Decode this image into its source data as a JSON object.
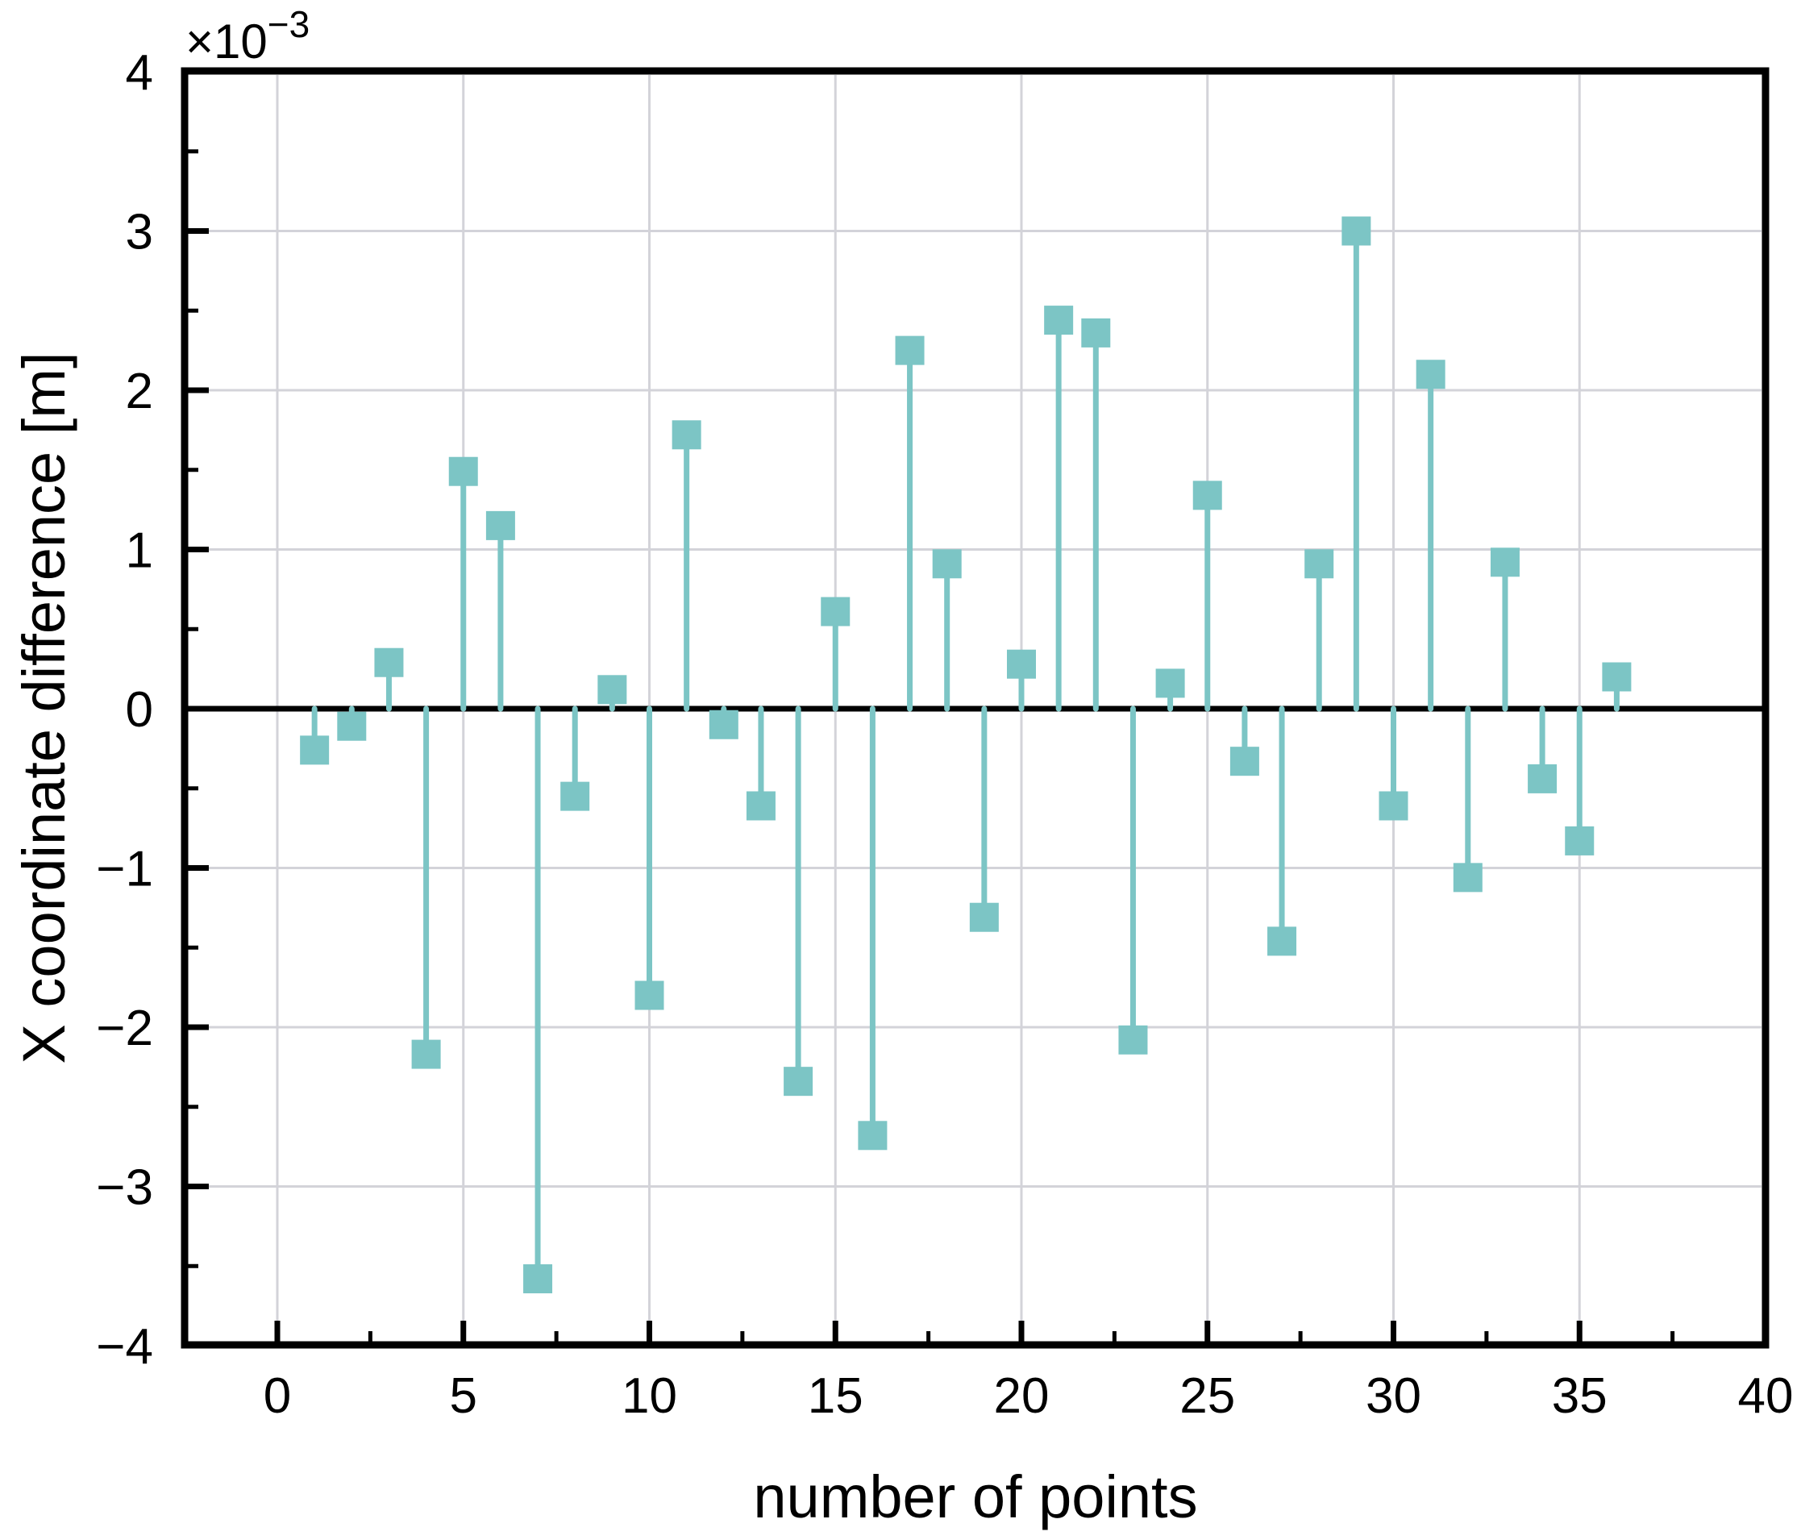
{
  "chart_data": {
    "type": "stem",
    "title": "",
    "xlabel": "number of points",
    "ylabel": "X coordinate difference [m]",
    "y_offset_label": {
      "base": "×10",
      "exponent": "−3"
    },
    "x": [
      1,
      2,
      3,
      4,
      5,
      6,
      7,
      8,
      9,
      10,
      11,
      12,
      13,
      14,
      15,
      16,
      17,
      18,
      19,
      20,
      21,
      22,
      23,
      24,
      25,
      26,
      27,
      28,
      29,
      30,
      31,
      32,
      33,
      34,
      35,
      36
    ],
    "values_x1e3": [
      -0.26,
      -0.11,
      0.29,
      -2.17,
      1.49,
      1.15,
      -3.58,
      -0.55,
      0.12,
      -1.8,
      1.72,
      -0.1,
      -0.61,
      -2.34,
      0.61,
      -2.68,
      2.25,
      0.91,
      -1.31,
      0.28,
      2.44,
      2.36,
      -2.08,
      0.16,
      1.34,
      -0.33,
      -1.46,
      0.91,
      3.0,
      -0.61,
      2.1,
      -1.06,
      0.92,
      -0.44,
      -0.83,
      0.2
    ],
    "unit_multiplier": 0.001,
    "xlim": [
      -2.5,
      40
    ],
    "ylim_x1e3": [
      -4,
      4
    ],
    "xticks": [
      0,
      5,
      10,
      15,
      20,
      25,
      30,
      35,
      40
    ],
    "x_minor_ticks": [
      2.5,
      7.5,
      12.5,
      17.5,
      22.5,
      27.5,
      32.5,
      37.5
    ],
    "yticks_x1e3": [
      4,
      3,
      2,
      1,
      0,
      -1,
      -2,
      -3,
      -4
    ],
    "y_minor_ticks_x1e3": [
      3.5,
      2.5,
      1.5,
      0.5,
      -0.5,
      -1.5,
      -2.5,
      -3.5
    ],
    "grid": true,
    "legend": null,
    "zero_baseline": true
  },
  "colors": {
    "stem": "#7cc5c5",
    "marker": "#7cc5c5",
    "grid": "#d3d3d9",
    "axis": "#000000",
    "zero_line": "#000000",
    "background": "#ffffff"
  }
}
